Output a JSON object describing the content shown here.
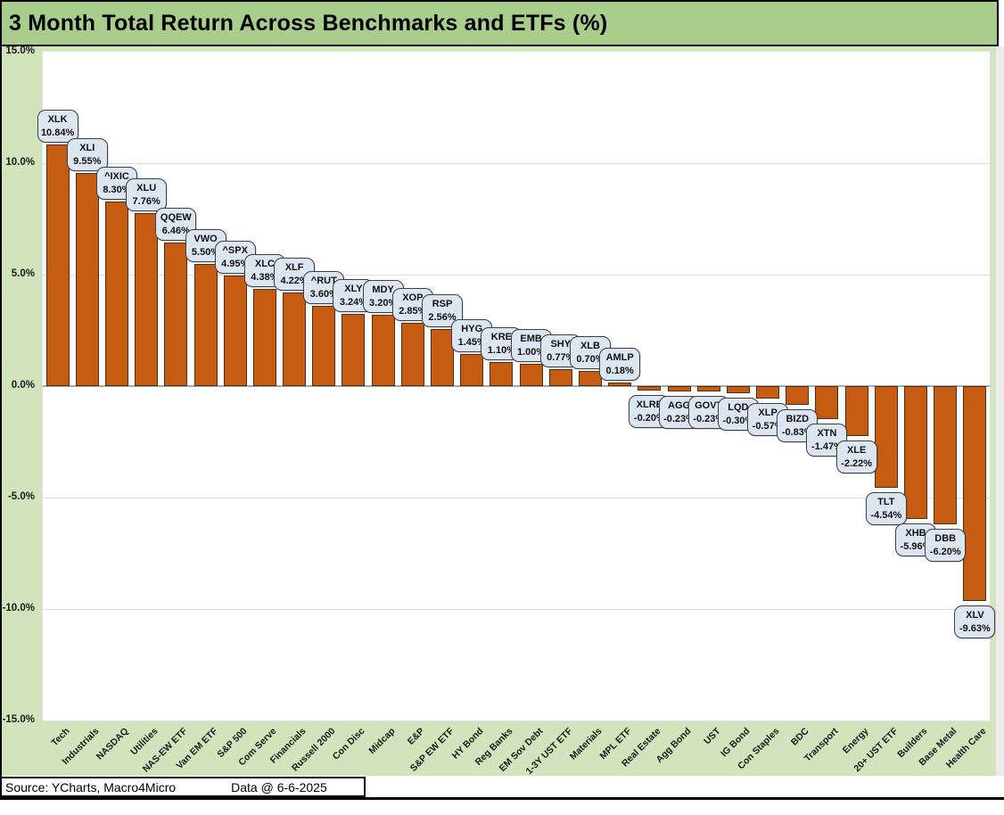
{
  "header": {
    "title": "3 Month Total Return Across Benchmarks and ETFs (%)"
  },
  "footer": {
    "source": "Source: YCharts, Macro4Micro",
    "data_date": "Data @ 6-6-2025"
  },
  "colors": {
    "title_bg": "#a9ce8c",
    "panel_bg": "#d1e4bc",
    "bar_fill": "#c55c12",
    "bar_border": "#47301a",
    "callout_bg": "#dce6f2",
    "callout_border": "#3f3f3f",
    "gridline": "#dcdcdc",
    "zero_line": "#a8a8a8"
  },
  "chart_data": {
    "type": "bar",
    "title": "3 Month Total Return Across Benchmarks and ETFs (%)",
    "xlabel": "",
    "ylabel": "",
    "ylim": [
      -15,
      15
    ],
    "grid": true,
    "legend_position": "none",
    "yticks": [
      {
        "value": 15,
        "label": "15.0%"
      },
      {
        "value": 10,
        "label": "10.0%"
      },
      {
        "value": 5,
        "label": "5.0%"
      },
      {
        "value": 0,
        "label": "0.0%"
      },
      {
        "value": -5,
        "label": "-5.0%"
      },
      {
        "value": -10,
        "label": "-10.0%"
      },
      {
        "value": -15,
        "label": "-15.0%"
      }
    ],
    "points": [
      {
        "category": "Tech",
        "ticker": "XLK",
        "value": 10.84,
        "display": "10.84%"
      },
      {
        "category": "Industrials",
        "ticker": "XLI",
        "value": 9.55,
        "display": "9.55%"
      },
      {
        "category": "NASDAQ",
        "ticker": "^IXIC",
        "value": 8.3,
        "display": "8.30%"
      },
      {
        "category": "Utilities",
        "ticker": "XLU",
        "value": 7.76,
        "display": "7.76%"
      },
      {
        "category": "NAS-EW ETF",
        "ticker": "QQEW",
        "value": 6.46,
        "display": "6.46%"
      },
      {
        "category": "Van EM ETF",
        "ticker": "VWO",
        "value": 5.5,
        "display": "5.50%"
      },
      {
        "category": "S&P 500",
        "ticker": "^SPX",
        "value": 4.95,
        "display": "4.95%"
      },
      {
        "category": "Com Serve",
        "ticker": "XLC",
        "value": 4.38,
        "display": "4.38%"
      },
      {
        "category": "Financials",
        "ticker": "XLF",
        "value": 4.22,
        "display": "4.22%"
      },
      {
        "category": "Russell 2000",
        "ticker": "^RUT",
        "value": 3.6,
        "display": "3.60%"
      },
      {
        "category": "Con Disc",
        "ticker": "XLY",
        "value": 3.24,
        "display": "3.24%"
      },
      {
        "category": "Midcap",
        "ticker": "MDY",
        "value": 3.2,
        "display": "3.20%"
      },
      {
        "category": "E&P",
        "ticker": "XOP",
        "value": 2.85,
        "display": "2.85%"
      },
      {
        "category": "S&P EW ETF",
        "ticker": "RSP",
        "value": 2.56,
        "display": "2.56%"
      },
      {
        "category": "HY Bond",
        "ticker": "HYG",
        "value": 1.45,
        "display": "1.45%"
      },
      {
        "category": "Reg Banks",
        "ticker": "KRE",
        "value": 1.1,
        "display": "1.10%"
      },
      {
        "category": "EM Sov Debt",
        "ticker": "EMB",
        "value": 1.0,
        "display": "1.00%"
      },
      {
        "category": "1-3Y UST ETF",
        "ticker": "SHY",
        "value": 0.77,
        "display": "0.77%"
      },
      {
        "category": "Materials",
        "ticker": "XLB",
        "value": 0.7,
        "display": "0.70%"
      },
      {
        "category": "MPL ETF",
        "ticker": "AMLP",
        "value": 0.18,
        "display": "0.18%"
      },
      {
        "category": "Real Estate",
        "ticker": "XLRE",
        "value": -0.2,
        "display": "-0.20%"
      },
      {
        "category": "Agg Bond",
        "ticker": "AGG",
        "value": -0.23,
        "display": "-0.23%"
      },
      {
        "category": "UST",
        "ticker": "GOVT",
        "value": -0.23,
        "display": "-0.23%"
      },
      {
        "category": "IG Bond",
        "ticker": "LQD",
        "value": -0.3,
        "display": "-0.30%"
      },
      {
        "category": "Con Staples",
        "ticker": "XLP",
        "value": -0.57,
        "display": "-0.57%"
      },
      {
        "category": "BDC",
        "ticker": "BIZD",
        "value": -0.83,
        "display": "-0.83%"
      },
      {
        "category": "Transport",
        "ticker": "XTN",
        "value": -1.47,
        "display": "-1.47%"
      },
      {
        "category": "Energy",
        "ticker": "XLE",
        "value": -2.22,
        "display": "-2.22%"
      },
      {
        "category": "20+ UST ETF",
        "ticker": "TLT",
        "value": -4.54,
        "display": "-4.54%"
      },
      {
        "category": "Builders",
        "ticker": "XHB",
        "value": -5.96,
        "display": "-5.96%"
      },
      {
        "category": "Base Metal",
        "ticker": "DBB",
        "value": -6.2,
        "display": "-6.20%"
      },
      {
        "category": "Health Care",
        "ticker": "XLV",
        "value": -9.63,
        "display": "-9.63%"
      }
    ]
  }
}
